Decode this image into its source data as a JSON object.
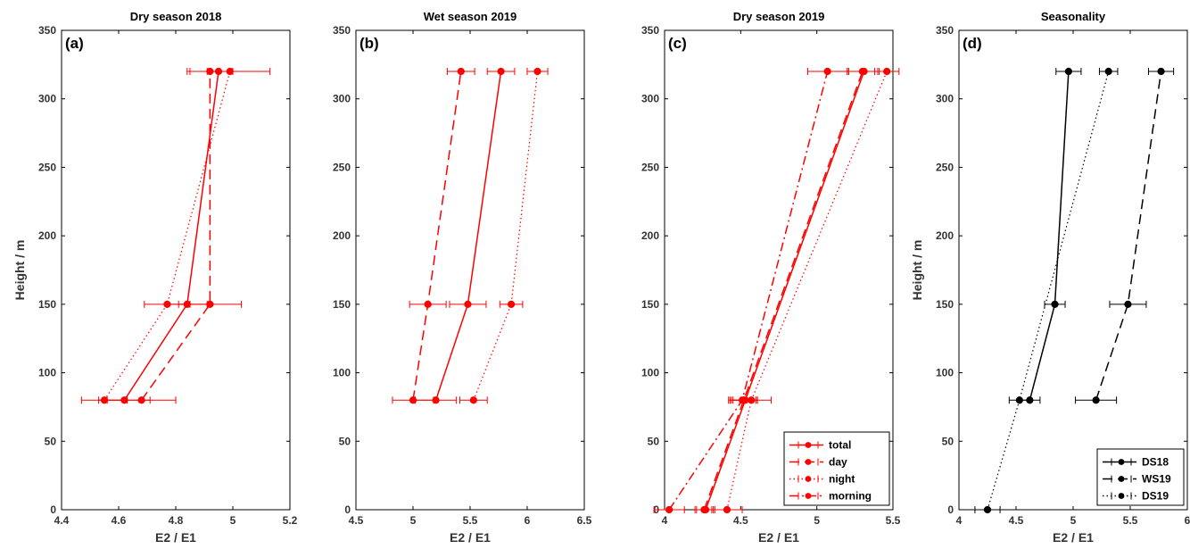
{
  "chart_data": [
    {
      "type": "line",
      "panel_label": "(a)",
      "title": "Dry season 2018",
      "xlabel": "E2 / E1",
      "ylabel": "Height / m",
      "xlim": [
        4.4,
        5.2
      ],
      "xticks": [
        4.4,
        4.6,
        4.8,
        5,
        5.2
      ],
      "xtick_labels": [
        "4.4",
        "4.6",
        "4.8",
        "5",
        "5.2"
      ],
      "ylim": [
        0,
        350
      ],
      "yticks": [
        0,
        50,
        100,
        150,
        200,
        250,
        300,
        350
      ],
      "ytick_labels": [
        "0",
        "50",
        "100",
        "150",
        "200",
        "250",
        "300",
        "350"
      ],
      "color": "#ff0000",
      "series": [
        {
          "style": "solid",
          "y": [
            80,
            150,
            320
          ],
          "x": [
            4.62,
            4.84,
            4.95
          ],
          "err": [
            0.09,
            0.07,
            0.04
          ]
        },
        {
          "style": "dashed",
          "y": [
            80,
            150,
            320
          ],
          "x": [
            4.68,
            4.92,
            4.92
          ],
          "err": [
            0.12,
            0.11,
            0.08
          ]
        },
        {
          "style": "dotted",
          "y": [
            80,
            150,
            320
          ],
          "x": [
            4.55,
            4.77,
            4.99
          ],
          "err": [
            0.08,
            0.08,
            0.14
          ]
        }
      ]
    },
    {
      "type": "line",
      "panel_label": "(b)",
      "title": "Wet season 2019",
      "xlabel": "E2 / E1",
      "ylabel": "",
      "xlim": [
        4.5,
        6.5
      ],
      "xticks": [
        4.5,
        5,
        5.5,
        6,
        6.5
      ],
      "xtick_labels": [
        "4.5",
        "5",
        "5.5",
        "6",
        "6.5"
      ],
      "ylim": [
        0,
        350
      ],
      "yticks": [
        0,
        50,
        100,
        150,
        200,
        250,
        300,
        350
      ],
      "ytick_labels": [
        "0",
        "50",
        "100",
        "150",
        "200",
        "250",
        "300",
        "350"
      ],
      "color": "#ff0000",
      "series": [
        {
          "style": "solid",
          "y": [
            80,
            150,
            320
          ],
          "x": [
            5.2,
            5.48,
            5.77
          ],
          "err": [
            0.18,
            0.16,
            0.12
          ]
        },
        {
          "style": "dashed",
          "y": [
            80,
            150,
            320
          ],
          "x": [
            5.0,
            5.13,
            5.42
          ],
          "err": [
            0.18,
            0.16,
            0.12
          ]
        },
        {
          "style": "dotted",
          "y": [
            80,
            150,
            320
          ],
          "x": [
            5.53,
            5.86,
            6.09
          ],
          "err": [
            0.12,
            0.1,
            0.09
          ]
        }
      ]
    },
    {
      "type": "line",
      "panel_label": "(c)",
      "title": "Dry season 2019",
      "xlabel": "E2 / E1",
      "ylabel": "",
      "xlim": [
        4,
        5.5
      ],
      "xticks": [
        4,
        4.5,
        5,
        5.5
      ],
      "xtick_labels": [
        "4",
        "4.5",
        "5",
        "5.5"
      ],
      "ylim": [
        0,
        350
      ],
      "yticks": [
        0,
        50,
        100,
        150,
        200,
        250,
        300,
        350
      ],
      "ytick_labels": [
        "0",
        "50",
        "100",
        "150",
        "200",
        "250",
        "300",
        "350"
      ],
      "color": "#ff0000",
      "series": [
        {
          "name": "total",
          "style": "solid",
          "y": [
            0,
            80,
            320
          ],
          "x": [
            4.27,
            4.53,
            5.31
          ],
          "err": [
            0.06,
            0.08,
            0.1
          ]
        },
        {
          "name": "day",
          "style": "dashed",
          "y": [
            0,
            80,
            320
          ],
          "x": [
            4.26,
            4.52,
            5.3
          ],
          "err": [
            0.06,
            0.09,
            0.1
          ]
        },
        {
          "name": "night",
          "style": "dotted",
          "y": [
            0,
            80,
            320
          ],
          "x": [
            4.41,
            4.57,
            5.46
          ],
          "err": [
            0.1,
            0.13,
            0.08
          ]
        },
        {
          "name": "morning",
          "style": "dashdot",
          "y": [
            0,
            80,
            320
          ],
          "x": [
            4.03,
            4.51,
            5.07
          ],
          "err": [
            0.1,
            0.09,
            0.13
          ]
        }
      ],
      "legend_position": "bottom-right"
    },
    {
      "type": "line",
      "panel_label": "(d)",
      "title": "Seasonality",
      "xlabel": "E2 / E1",
      "ylabel": "Height / m",
      "xlim": [
        4,
        6
      ],
      "xticks": [
        4,
        4.5,
        5,
        5.5,
        6
      ],
      "xtick_labels": [
        "4",
        "4.5",
        "5",
        "5.5",
        "6"
      ],
      "ylim": [
        0,
        350
      ],
      "yticks": [
        0,
        50,
        100,
        150,
        200,
        250,
        300,
        350
      ],
      "ytick_labels": [
        "0",
        "50",
        "100",
        "150",
        "200",
        "250",
        "300",
        "350"
      ],
      "color": "#000000",
      "series": [
        {
          "name": "DS18",
          "style": "solid",
          "y": [
            80,
            150,
            320
          ],
          "x": [
            4.62,
            4.84,
            4.96
          ],
          "err": [
            0.09,
            0.09,
            0.11
          ]
        },
        {
          "name": "WS19",
          "style": "dashed",
          "y": [
            80,
            150,
            320
          ],
          "x": [
            5.2,
            5.48,
            5.77
          ],
          "err": [
            0.18,
            0.16,
            0.11
          ]
        },
        {
          "name": "DS19",
          "style": "dotted",
          "y": [
            0,
            80,
            320
          ],
          "x": [
            4.25,
            4.53,
            5.31
          ],
          "err": [
            0.11,
            0.09,
            0.08
          ]
        }
      ],
      "legend_position": "bottom-right"
    }
  ]
}
